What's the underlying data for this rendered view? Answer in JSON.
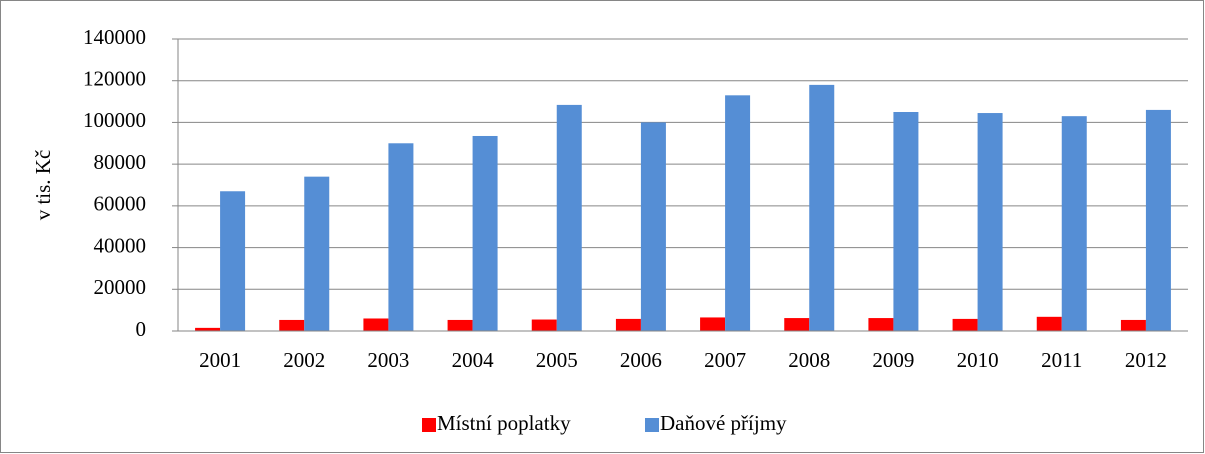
{
  "chart_data": {
    "type": "bar",
    "y_label": "v tis. Kč",
    "categories": [
      "2001",
      "2002",
      "2003",
      "2004",
      "2005",
      "2006",
      "2007",
      "2008",
      "2009",
      "2010",
      "2011",
      "2012"
    ],
    "series": [
      {
        "name": "Místní poplatky",
        "color": "#ff0000",
        "values": [
          1500,
          5300,
          6000,
          5300,
          5500,
          5800,
          6500,
          6200,
          6200,
          5800,
          6800,
          5300
        ]
      },
      {
        "name": "Daňové příjmy",
        "color": "#558ed5",
        "values": [
          67000,
          74000,
          90000,
          93500,
          108400,
          100000,
          113000,
          118000,
          105000,
          104500,
          103000,
          106000
        ]
      }
    ],
    "ylim": [
      0,
      140000
    ],
    "yticks": [
      0,
      20000,
      40000,
      60000,
      80000,
      100000,
      120000,
      140000
    ],
    "grid": true,
    "legend": "bottom"
  }
}
